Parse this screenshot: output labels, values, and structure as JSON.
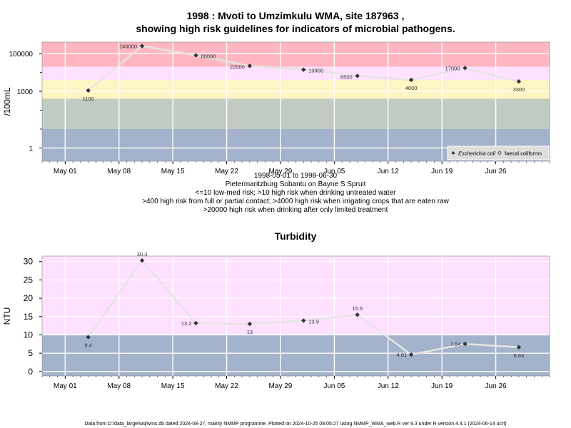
{
  "title_line1": "1998 : Mvoti to Umzimkulu WMA, site 187963 ,",
  "title_line2": "showing high risk guidelines for indicators of microbial pathogens.",
  "subtitle_lines": [
    "1998-05-01 to 1998-06-30",
    "Pietermaritzburg Sobantu on Bayne S Spruit",
    "<=10 low-med risk; >10 high risk when drinking untreated water",
    ">400 high risk from full or partial contact; >4000 high risk when irrigating crops that are eaten raw",
    ">20000 high risk when drinking after only limited treatment"
  ],
  "footer": "Data from D:/data_large/wq/wms.db dated 2024-08-27, mainly NMMP programme. Plotted on 2024-10-25 08:05:27 using NMMP_WMA_web.R ver 9.3 under R version 4.4.1 (2024-06-14 ucrt)",
  "colors": {
    "band_red": "#ffb6c1",
    "band_pink": "#ffe0ff",
    "band_yellow": "#fdf5c3",
    "band_gray": "#c2cbc2",
    "band_blue": "#a2b3cb",
    "line": "#e4e4e4",
    "point": "#333333",
    "grid": "#ffffff"
  },
  "chart_data": [
    {
      "type": "line",
      "y_scale": "log",
      "ylabel": "/100mL",
      "x_ticks": [
        "May 01",
        "May 08",
        "May 15",
        "May 22",
        "May 29",
        "Jun 05",
        "Jun 12",
        "Jun 19",
        "Jun 26"
      ],
      "x_tick_dates": [
        "1998-05-01",
        "1998-05-08",
        "1998-05-15",
        "1998-05-22",
        "1998-05-29",
        "1998-06-05",
        "1998-06-12",
        "1998-06-19",
        "1998-06-26"
      ],
      "xlim": [
        "1998-04-28",
        "1998-07-03"
      ],
      "y_ticks": [
        1,
        1000,
        100000
      ],
      "y_tick_labels": [
        "1",
        "1000",
        "100000"
      ],
      "ylim": [
        0.2,
        400000
      ],
      "risk_bands": [
        {
          "from": 0.2,
          "to": 10,
          "color_key": "band_blue"
        },
        {
          "from": 10,
          "to": 400,
          "color_key": "band_gray"
        },
        {
          "from": 400,
          "to": 4000,
          "color_key": "band_yellow"
        },
        {
          "from": 4000,
          "to": 20000,
          "color_key": "band_pink"
        },
        {
          "from": 20000,
          "to": 400000,
          "color_key": "band_red"
        }
      ],
      "series": [
        {
          "name": "Escherichia coli",
          "marker": "filled-diamond",
          "x": [
            "1998-05-04",
            "1998-05-11",
            "1998-05-18",
            "1998-05-25",
            "1998-06-01",
            "1998-06-08",
            "1998-06-15",
            "1998-06-22",
            "1998-06-29"
          ],
          "y": [
            1100,
            246000,
            80000,
            22000,
            13900,
            6500,
            4000,
            17000,
            3300
          ],
          "labels": [
            "1100",
            "246000",
            "80000",
            "22000",
            "13900",
            "6500",
            "4000",
            "17000",
            "3300"
          ]
        }
      ],
      "legend": {
        "position": "bottom-right",
        "entries": [
          {
            "label": "Escherichia coli",
            "marker": "filled-diamond",
            "italic": true
          },
          {
            "label": "faecal coliforms",
            "marker": "open-diamond",
            "italic": false
          }
        ]
      }
    },
    {
      "type": "line",
      "title": "Turbidity",
      "ylabel": "NTU",
      "x_ticks": [
        "May 01",
        "May 08",
        "May 15",
        "May 22",
        "May 29",
        "Jun 05",
        "Jun 12",
        "Jun 19",
        "Jun 26"
      ],
      "x_tick_dates": [
        "1998-05-01",
        "1998-05-08",
        "1998-05-15",
        "1998-05-22",
        "1998-05-29",
        "1998-06-05",
        "1998-06-12",
        "1998-06-19",
        "1998-06-26"
      ],
      "xlim": [
        "1998-04-28",
        "1998-07-03"
      ],
      "y_ticks": [
        0,
        5,
        10,
        15,
        20,
        25,
        30
      ],
      "ylim": [
        -1.2,
        31.5
      ],
      "risk_bands": [
        {
          "from": -1.2,
          "to": 10,
          "color_key": "band_blue"
        },
        {
          "from": 10,
          "to": 31.5,
          "color_key": "band_pink"
        }
      ],
      "series": [
        {
          "marker": "filled-diamond",
          "x": [
            "1998-05-04",
            "1998-05-11",
            "1998-05-18",
            "1998-05-25",
            "1998-06-01",
            "1998-06-08",
            "1998-06-15",
            "1998-06-22",
            "1998-06-29"
          ],
          "y": [
            9.4,
            30.3,
            13.2,
            13,
            13.9,
            15.5,
            4.61,
            7.54,
            6.63
          ],
          "labels": [
            "9.4",
            "30.3",
            "13.2",
            "13",
            "13.9",
            "15.5",
            "4.61",
            "7.54",
            "6.63"
          ]
        }
      ]
    }
  ]
}
